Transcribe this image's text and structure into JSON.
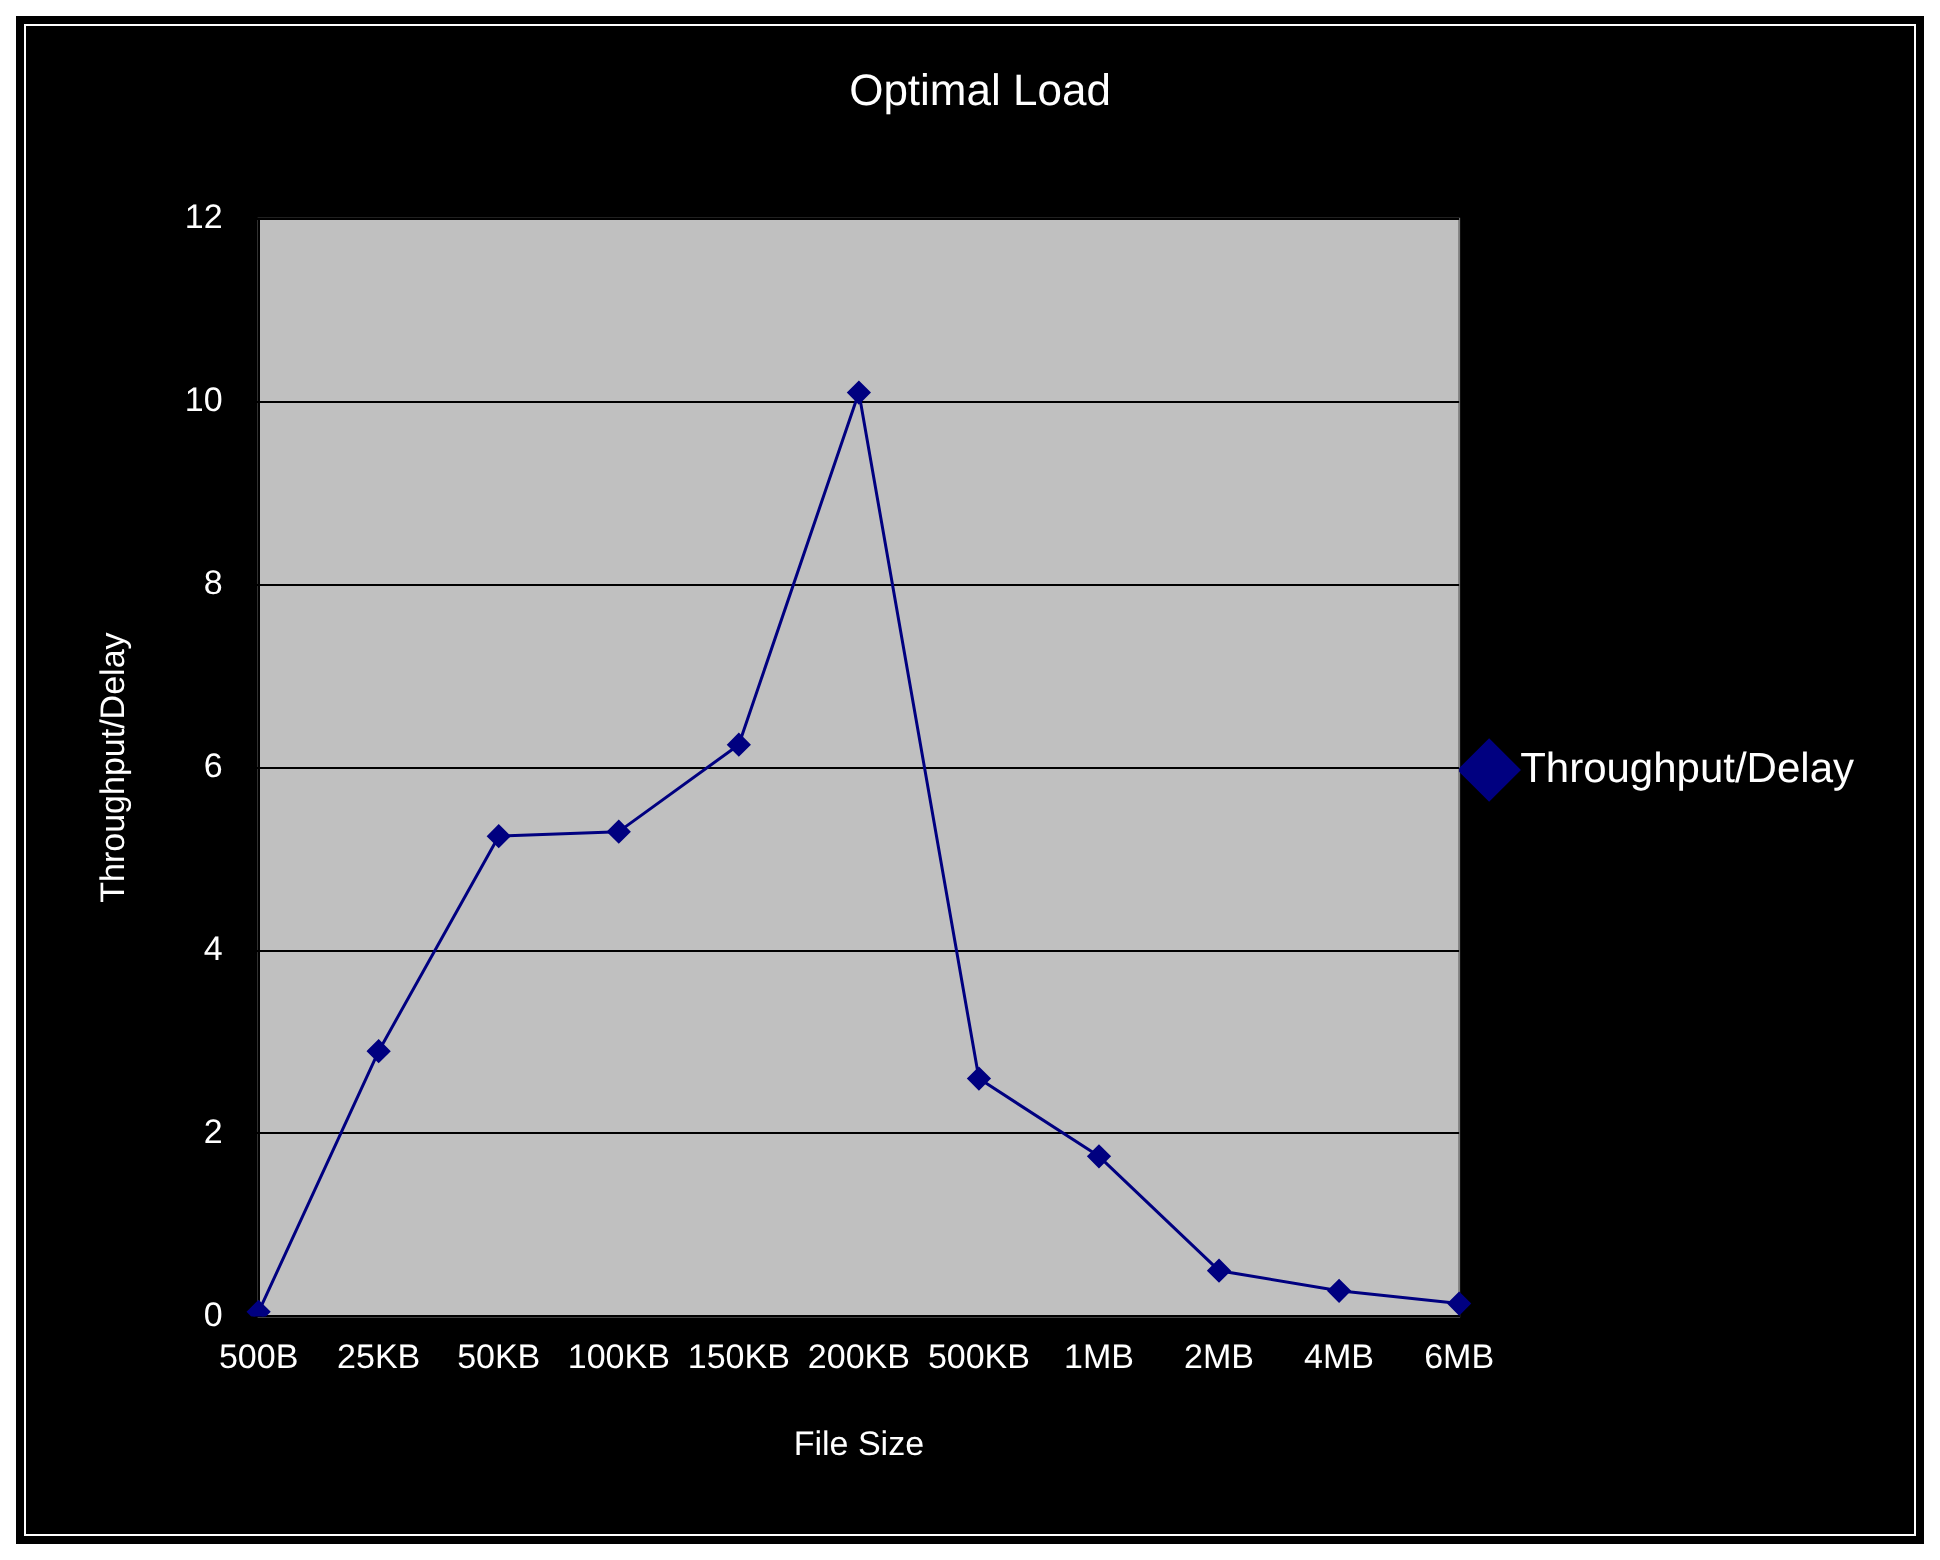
{
  "chart_data": {
    "type": "line",
    "title": "Optimal Load",
    "xlabel": "File Size",
    "ylabel": "Throughput/Delay",
    "categories": [
      "500B",
      "25KB",
      "50KB",
      "100KB",
      "150KB",
      "200KB",
      "500KB",
      "1MB",
      "2MB",
      "4MB",
      "6MB"
    ],
    "series": [
      {
        "name": "Throughput/Delay",
        "color": "#000080",
        "values": [
          0.05,
          2.9,
          5.25,
          5.3,
          6.25,
          10.1,
          2.6,
          1.75,
          0.5,
          0.28,
          0.14
        ]
      }
    ],
    "ylim": [
      0,
      12
    ],
    "yticks": [
      0,
      2,
      4,
      6,
      8,
      10,
      12
    ],
    "grid": "y",
    "legend": "right",
    "marker": "diamond",
    "line_style": "solid"
  }
}
